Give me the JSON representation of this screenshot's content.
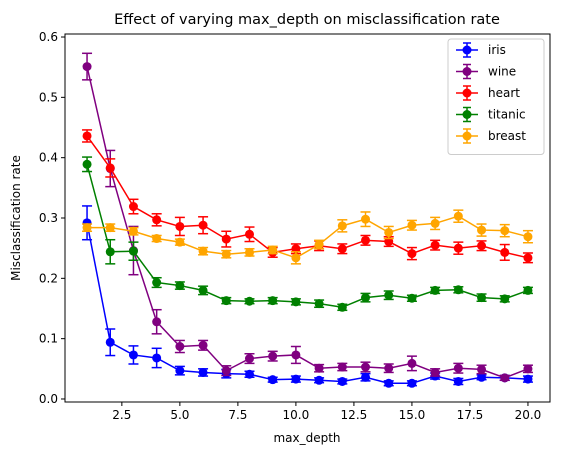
{
  "chart_data": {
    "type": "line",
    "title": "Effect of varying max_depth on misclassification rate",
    "xlabel": "max_depth",
    "ylabel": "Misclassification rate",
    "xlim": [
      0.05,
      20.95
    ],
    "ylim": [
      -0.005,
      0.605
    ],
    "x_ticks": [
      2.5,
      5.0,
      7.5,
      10.0,
      12.5,
      15.0,
      17.5,
      20.0
    ],
    "y_ticks": [
      0.0,
      0.1,
      0.2,
      0.3,
      0.4,
      0.5,
      0.6
    ],
    "grid": false,
    "legend_position": "top-right",
    "x": [
      1,
      2,
      3,
      4,
      5,
      6,
      7,
      8,
      9,
      10,
      11,
      12,
      13,
      14,
      15,
      16,
      17,
      18,
      19,
      20
    ],
    "series": [
      {
        "name": "iris",
        "color": "#0000ff",
        "values": [
          0.292,
          0.094,
          0.073,
          0.068,
          0.047,
          0.044,
          0.042,
          0.041,
          0.032,
          0.033,
          0.031,
          0.029,
          0.036,
          0.026,
          0.026,
          0.038,
          0.029,
          0.036,
          0.035,
          0.033
        ],
        "errors": [
          0.028,
          0.022,
          0.015,
          0.016,
          0.007,
          0.006,
          0.007,
          0.005,
          0.004,
          0.005,
          0.004,
          0.004,
          0.006,
          0.004,
          0.004,
          0.005,
          0.005,
          0.004,
          0.004,
          0.005
        ]
      },
      {
        "name": "wine",
        "color": "#800080",
        "values": [
          0.551,
          0.382,
          0.246,
          0.128,
          0.087,
          0.089,
          0.047,
          0.067,
          0.071,
          0.073,
          0.051,
          0.053,
          0.053,
          0.051,
          0.059,
          0.044,
          0.051,
          0.049,
          0.035,
          0.05
        ],
        "errors": [
          0.022,
          0.03,
          0.04,
          0.02,
          0.01,
          0.008,
          0.008,
          0.008,
          0.008,
          0.014,
          0.006,
          0.006,
          0.008,
          0.007,
          0.012,
          0.006,
          0.008,
          0.007,
          0.004,
          0.006
        ]
      },
      {
        "name": "heart",
        "color": "#ff0000",
        "values": [
          0.436,
          0.383,
          0.319,
          0.297,
          0.286,
          0.288,
          0.265,
          0.273,
          0.243,
          0.249,
          0.254,
          0.249,
          0.263,
          0.261,
          0.241,
          0.255,
          0.25,
          0.254,
          0.243,
          0.234
        ],
        "errors": [
          0.01,
          0.015,
          0.012,
          0.01,
          0.015,
          0.014,
          0.013,
          0.012,
          0.008,
          0.008,
          0.008,
          0.008,
          0.008,
          0.008,
          0.01,
          0.008,
          0.01,
          0.008,
          0.013,
          0.008
        ]
      },
      {
        "name": "titanic",
        "color": "#008000",
        "values": [
          0.389,
          0.244,
          0.245,
          0.193,
          0.188,
          0.18,
          0.163,
          0.162,
          0.163,
          0.161,
          0.158,
          0.152,
          0.168,
          0.172,
          0.167,
          0.18,
          0.181,
          0.168,
          0.166,
          0.18
        ],
        "errors": [
          0.012,
          0.02,
          0.015,
          0.008,
          0.006,
          0.007,
          0.005,
          0.004,
          0.005,
          0.005,
          0.006,
          0.005,
          0.007,
          0.007,
          0.005,
          0.005,
          0.005,
          0.006,
          0.005,
          0.005
        ]
      },
      {
        "name": "breast",
        "color": "#ffa500",
        "values": [
          0.284,
          0.284,
          0.278,
          0.266,
          0.26,
          0.245,
          0.24,
          0.243,
          0.247,
          0.234,
          0.256,
          0.287,
          0.298,
          0.276,
          0.288,
          0.291,
          0.303,
          0.28,
          0.279,
          0.269
        ],
        "errors": [
          0.006,
          0.006,
          0.006,
          0.005,
          0.005,
          0.006,
          0.006,
          0.006,
          0.006,
          0.01,
          0.007,
          0.01,
          0.012,
          0.01,
          0.008,
          0.01,
          0.01,
          0.01,
          0.01,
          0.01
        ]
      }
    ]
  }
}
